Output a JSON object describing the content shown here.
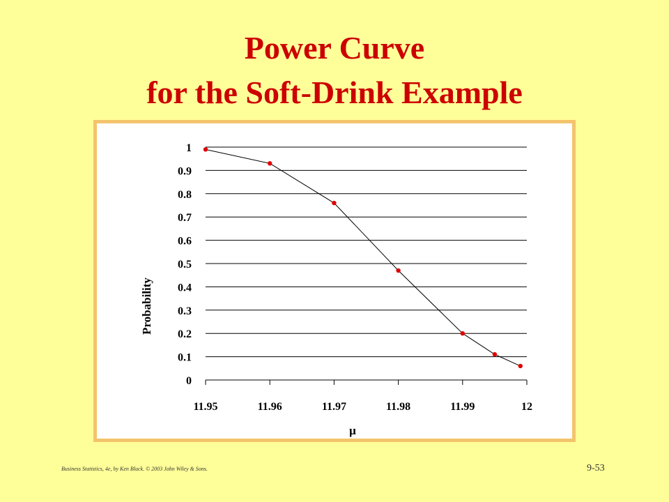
{
  "slide": {
    "title_line1": "Power Curve",
    "title_line2": "for the Soft-Drink Example",
    "footer": "Business Statistics, 4e, by Ken Black. © 2003 John Wiley & Sons.",
    "page_number": "9-53"
  },
  "colors": {
    "background": "#ffff99",
    "title": "#cc0000",
    "frame": "#f4c46c",
    "points": "#e00000",
    "line": "#000000"
  },
  "chart_data": {
    "type": "line",
    "title": "",
    "xlabel": "μ",
    "ylabel": "Probability",
    "xlim": [
      11.95,
      12
    ],
    "ylim": [
      0,
      1
    ],
    "x_ticks": [
      "11.95",
      "11.96",
      "11.97",
      "11.98",
      "11.99",
      "12"
    ],
    "y_ticks": [
      "0",
      "0.1",
      "0.2",
      "0.3",
      "0.4",
      "0.5",
      "0.6",
      "0.7",
      "0.8",
      "0.9",
      "1"
    ],
    "grid": "horizontal",
    "legend": "none",
    "series": [
      {
        "x": [
          11.95,
          11.96,
          11.97,
          11.98,
          11.99,
          11.995,
          11.999
        ],
        "values": [
          0.99,
          0.93,
          0.76,
          0.47,
          0.2,
          0.11,
          0.06
        ]
      }
    ]
  }
}
